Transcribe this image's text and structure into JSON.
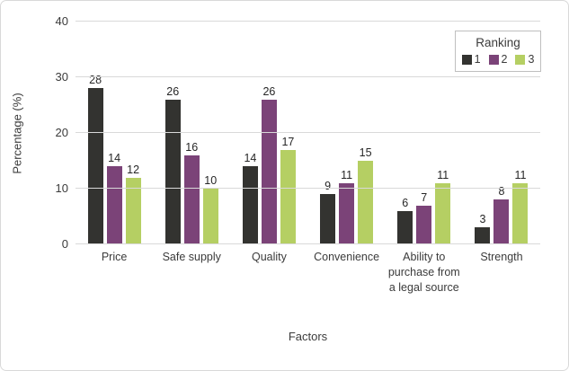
{
  "chart_data": {
    "type": "bar",
    "title": "",
    "xlabel": "Factors",
    "ylabel": "Percentage (%)",
    "ylim": [
      0,
      40
    ],
    "yticks": [
      0,
      10,
      20,
      30,
      40
    ],
    "grid": true,
    "data_labels": true,
    "legend_title": "Ranking",
    "legend_position": "top-right-inside",
    "categories": [
      "Price",
      "Safe supply",
      "Quality",
      "Convenience",
      "Ability to purchase from a legal source",
      "Strength"
    ],
    "series": [
      {
        "name": "1",
        "color": "#333330",
        "values": [
          28,
          26,
          14,
          9,
          6,
          3
        ]
      },
      {
        "name": "2",
        "color": "#7b4378",
        "values": [
          14,
          16,
          26,
          11,
          7,
          8
        ]
      },
      {
        "name": "3",
        "color": "#b5cf63",
        "values": [
          12,
          10,
          17,
          15,
          11,
          11
        ]
      }
    ]
  },
  "colors": {
    "gridline": "#d9d9d9",
    "axis_line": "#d9d9d9",
    "text": "#3b3b3b",
    "border": "#d9d9d9",
    "background": "#ffffff",
    "legend_border": "#bfbfbf"
  }
}
